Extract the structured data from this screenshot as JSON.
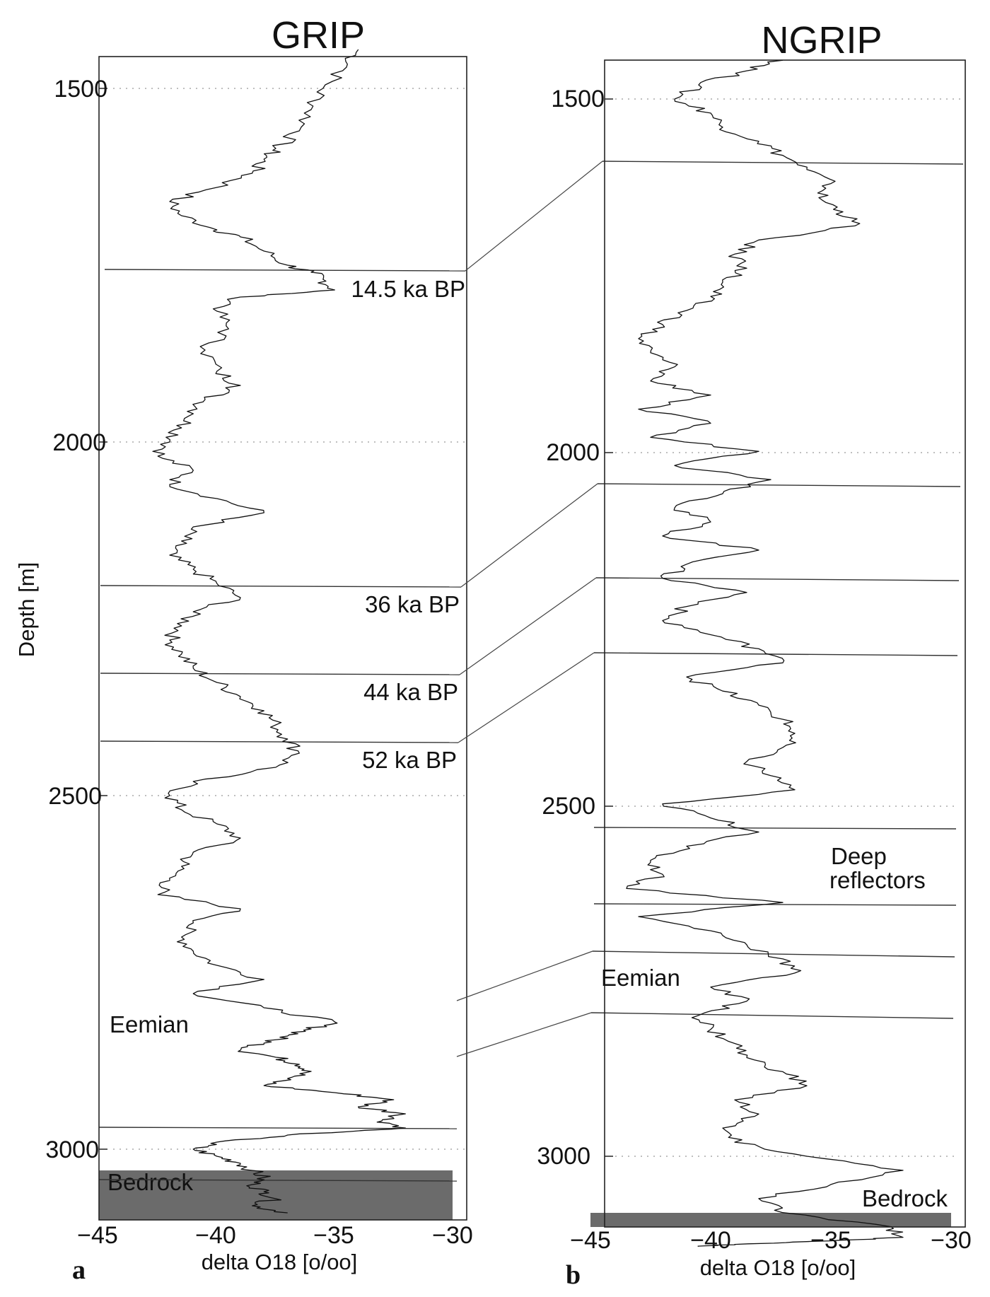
{
  "figure": {
    "panels": [
      {
        "id": "grip",
        "title": "GRIP",
        "letter": "a",
        "ylabel": "Depth [m]",
        "xlabel": "delta O18 [o/oo]",
        "x_ticks": [
          "−45",
          "−40",
          "−35",
          "−30"
        ],
        "y_ticks": [
          "1500",
          "2000",
          "2500",
          "3000"
        ],
        "bedrock_label": "Bedrock",
        "event_labels": [
          "14.5 ka BP",
          "36 ka BP",
          "44 ka BP",
          "52 ka BP",
          "Eemian"
        ]
      },
      {
        "id": "ngrip",
        "title": "NGRIP",
        "letter": "b",
        "xlabel": "delta O18 [o/oo]",
        "x_ticks": [
          "−45",
          "−40",
          "−35",
          "−30"
        ],
        "y_ticks": [
          "1500",
          "2000",
          "2500",
          "3000"
        ],
        "bedrock_label": "Bedrock",
        "event_labels": [
          "Eemian",
          "Deep",
          "reflectors"
        ]
      }
    ]
  },
  "chart_data": [
    {
      "type": "line",
      "title": "GRIP",
      "xlabel": "delta O18 [o/oo]",
      "ylabel": "Depth [m]",
      "xlim": [
        -45,
        -30
      ],
      "ylim": [
        1420,
        3100
      ],
      "y_inverted": true,
      "grid": "dotted horizontal at y ticks",
      "series": [
        {
          "x": [
            -34.0,
            -34.5,
            -35.5,
            -36.0,
            -36.5,
            -37.5,
            -38.0,
            -38.5,
            -40.0,
            -42.0,
            -41.5,
            -40.0,
            -39.0,
            -38.0,
            -37.0,
            -36.0,
            -35.5,
            -35.0,
            -39.0,
            -40.0,
            -39.5,
            -40.5,
            -40.0,
            -39.0,
            -40.5,
            -41.0,
            -41.5,
            -42.0,
            -42.5,
            -41.0,
            -42.0,
            -40.0,
            -38.0,
            -41.0,
            -41.5,
            -42.0,
            -41.0,
            -40.0,
            -39.0,
            -41.0,
            -41.5,
            -42.0,
            -41.5,
            -41.0,
            -40.0,
            -39.0,
            -38.0,
            -37.5,
            -37.0,
            -36.5,
            -37.5,
            -41.0,
            -42.0,
            -41.5,
            -40.0,
            -39.0,
            -41.0,
            -41.5,
            -42.0,
            -42.5,
            -39.0,
            -41.0,
            -41.5,
            -41.0,
            -40.0,
            -38.0,
            -41.0,
            -38.0,
            -35.0,
            -36.0,
            -37.0,
            -38.0,
            -39.0,
            -37.5,
            -36.5,
            -36.0,
            -37.0,
            -38.0,
            -35.0,
            -32.5,
            -34.0,
            -32.0,
            -33.0,
            -32.0,
            -37.0,
            -40.0,
            -41.0,
            -40.0,
            -39.0,
            -38.5,
            -38.0,
            -38.5,
            -38.0,
            -37.5,
            -38.5,
            -37.0
          ],
          "y": [
            1445,
            1470,
            1500,
            1530,
            1560,
            1585,
            1600,
            1620,
            1640,
            1660,
            1680,
            1700,
            1710,
            1730,
            1750,
            1760,
            1770,
            1785,
            1795,
            1815,
            1840,
            1870,
            1900,
            1920,
            1940,
            1960,
            1980,
            2000,
            2020,
            2040,
            2060,
            2080,
            2100,
            2120,
            2140,
            2160,
            2180,
            2200,
            2220,
            2240,
            2260,
            2280,
            2300,
            2320,
            2340,
            2360,
            2380,
            2400,
            2420,
            2440,
            2460,
            2480,
            2500,
            2520,
            2540,
            2560,
            2580,
            2600,
            2620,
            2640,
            2660,
            2680,
            2700,
            2720,
            2740,
            2760,
            2780,
            2800,
            2820,
            2830,
            2840,
            2850,
            2860,
            2870,
            2880,
            2890,
            2900,
            2910,
            2920,
            2930,
            2940,
            2950,
            2960,
            2970,
            2980,
            2990,
            3000,
            3010,
            3020,
            3030,
            3040,
            3050,
            3060,
            3070,
            3080,
            3090
          ]
        }
      ],
      "depth_boundaries": [
        1785,
        2232,
        2357,
        2452,
        2993,
        3070
      ],
      "bedrock_top_depth": 3070,
      "annotations": [
        "14.5 ka BP",
        "36 ka BP",
        "44 ka BP",
        "52 ka BP",
        "Eemian",
        "Bedrock"
      ]
    },
    {
      "type": "line",
      "title": "NGRIP",
      "xlabel": "delta O18 [o/oo]",
      "ylabel": "",
      "xlim": [
        -45,
        -30
      ],
      "ylim": [
        1420,
        3130
      ],
      "y_inverted": true,
      "grid": "dotted horizontal at y ticks",
      "series": [
        {
          "x": [
            -37.0,
            -38.5,
            -40.5,
            -41.5,
            -40.0,
            -39.5,
            -38.0,
            -37.0,
            -36.0,
            -35.0,
            -35.5,
            -34.5,
            -34.0,
            -38.0,
            -39.0,
            -38.5,
            -39.5,
            -40.0,
            -41.0,
            -42.0,
            -43.0,
            -42.5,
            -41.5,
            -42.5,
            -40.0,
            -43.0,
            -40.0,
            -42.5,
            -38.0,
            -41.5,
            -37.5,
            -39.5,
            -41.5,
            -40.0,
            -42.0,
            -38.0,
            -41.0,
            -42.0,
            -38.5,
            -41.0,
            -42.0,
            -40.0,
            -38.0,
            -37.0,
            -41.0,
            -39.5,
            -38.0,
            -37.0,
            -36.5,
            -37.0,
            -38.5,
            -37.5,
            -36.5,
            -42.0,
            -40.0,
            -38.0,
            -41.0,
            -42.5,
            -42.0,
            -43.5,
            -37.0,
            -43.0,
            -40.0,
            -38.5,
            -37.0,
            -36.5,
            -40.0,
            -38.5,
            -40.5,
            -40.0,
            -39.0,
            -38.5,
            -37.0,
            -36.0,
            -39.0,
            -38.0,
            -39.5,
            -39.0,
            -36.0,
            -32.0,
            -35.0,
            -38.0,
            -37.0,
            -32.5,
            -32.0,
            -35.0,
            -39.0,
            -40.5
          ],
          "y": [
            1445,
            1460,
            1480,
            1500,
            1520,
            1540,
            1560,
            1580,
            1600,
            1620,
            1640,
            1660,
            1680,
            1700,
            1720,
            1740,
            1760,
            1780,
            1800,
            1820,
            1840,
            1860,
            1880,
            1900,
            1920,
            1940,
            1960,
            1980,
            2000,
            2020,
            2040,
            2060,
            2080,
            2100,
            2120,
            2140,
            2160,
            2180,
            2200,
            2220,
            2240,
            2260,
            2280,
            2300,
            2320,
            2340,
            2360,
            2380,
            2400,
            2420,
            2440,
            2460,
            2480,
            2500,
            2520,
            2540,
            2560,
            2580,
            2600,
            2620,
            2640,
            2660,
            2680,
            2700,
            2720,
            2740,
            2760,
            2780,
            2800,
            2820,
            2840,
            2860,
            2880,
            2900,
            2920,
            2940,
            2960,
            2980,
            3000,
            3020,
            3040,
            3060,
            3080,
            3100,
            3115,
            3120,
            3125,
            3128
          ]
        }
      ],
      "depth_boundaries": [
        1600,
        2055,
        2190,
        2300,
        2535,
        2645,
        2720,
        2810
      ],
      "bedrock_top_depth": 3120,
      "annotations": [
        "Deep reflectors",
        "Eemian",
        "Bedrock"
      ]
    }
  ]
}
